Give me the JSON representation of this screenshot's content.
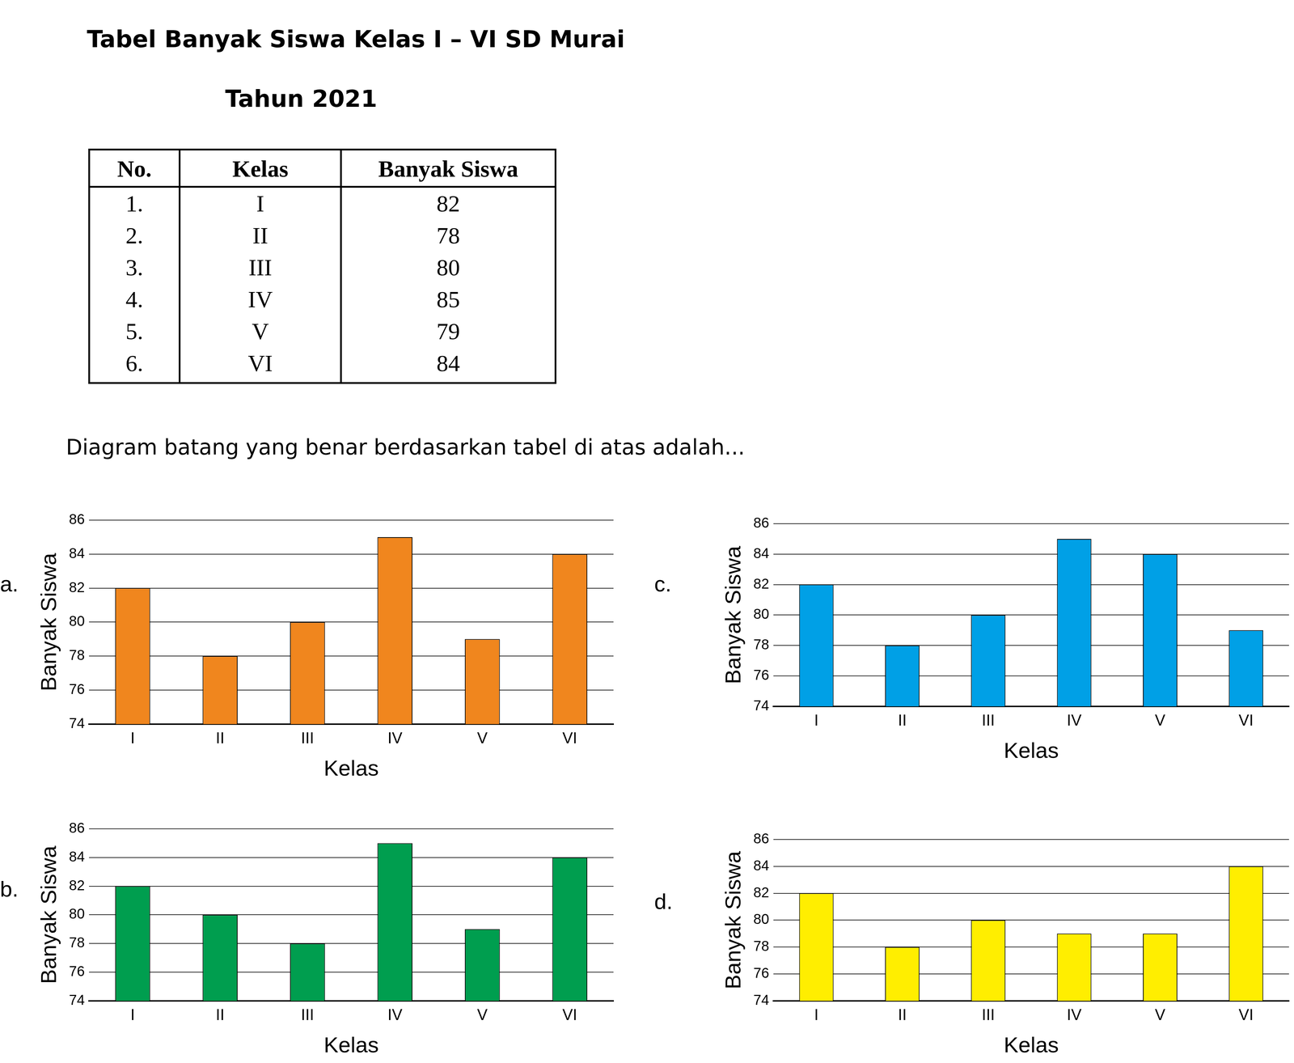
{
  "title": "Tabel Banyak Siswa Kelas I – VI SD Murai",
  "subtitle": "Tahun 2021",
  "table": {
    "header": [
      "No.",
      "Kelas",
      "Banyak Siswa"
    ],
    "rows": [
      [
        "1.",
        "I",
        "82"
      ],
      [
        "2.",
        "II",
        "78"
      ],
      [
        "3.",
        "III",
        "80"
      ],
      [
        "4.",
        "IV",
        "85"
      ],
      [
        "5.",
        "V",
        "79"
      ],
      [
        "6.",
        "VI",
        "84"
      ]
    ]
  },
  "question": "Diagram batang yang benar berdasarkan tabel di atas adalah...",
  "chart_data": [
    {
      "option": "a.",
      "type": "bar",
      "x_label": "Kelas",
      "y_label": "Banyak Siswa",
      "categories": [
        "I",
        "II",
        "III",
        "IV",
        "V",
        "VI"
      ],
      "values": [
        82,
        78,
        80,
        85,
        79,
        84
      ],
      "color": "#f0861e",
      "ylim": [
        74,
        86
      ],
      "yticks": [
        74,
        76,
        78,
        80,
        82,
        84,
        86
      ],
      "grid": true
    },
    {
      "option": "b.",
      "type": "bar",
      "x_label": "Kelas",
      "y_label": "Banyak Siswa",
      "categories": [
        "I",
        "II",
        "III",
        "IV",
        "V",
        "VI"
      ],
      "values": [
        82,
        80,
        78,
        85,
        79,
        84
      ],
      "color": "#009e4f",
      "ylim": [
        74,
        86
      ],
      "yticks": [
        74,
        76,
        78,
        80,
        82,
        84,
        86
      ],
      "grid": true
    },
    {
      "option": "c.",
      "type": "bar",
      "x_label": "Kelas",
      "y_label": "Banyak Siswa",
      "categories": [
        "I",
        "II",
        "III",
        "IV",
        "V",
        "VI"
      ],
      "values": [
        82,
        78,
        80,
        85,
        84,
        79
      ],
      "color": "#00a0e6",
      "ylim": [
        74,
        86
      ],
      "yticks": [
        74,
        76,
        78,
        80,
        82,
        84,
        86
      ],
      "grid": true
    },
    {
      "option": "d.",
      "type": "bar",
      "x_label": "Kelas",
      "y_label": "Banyak Siswa",
      "categories": [
        "I",
        "II",
        "III",
        "IV",
        "V",
        "VI"
      ],
      "values": [
        82,
        78,
        80,
        79,
        79,
        84
      ],
      "color": "#ffee00",
      "ylim": [
        74,
        86
      ],
      "yticks": [
        74,
        76,
        78,
        80,
        82,
        84,
        86
      ],
      "grid": true
    }
  ]
}
